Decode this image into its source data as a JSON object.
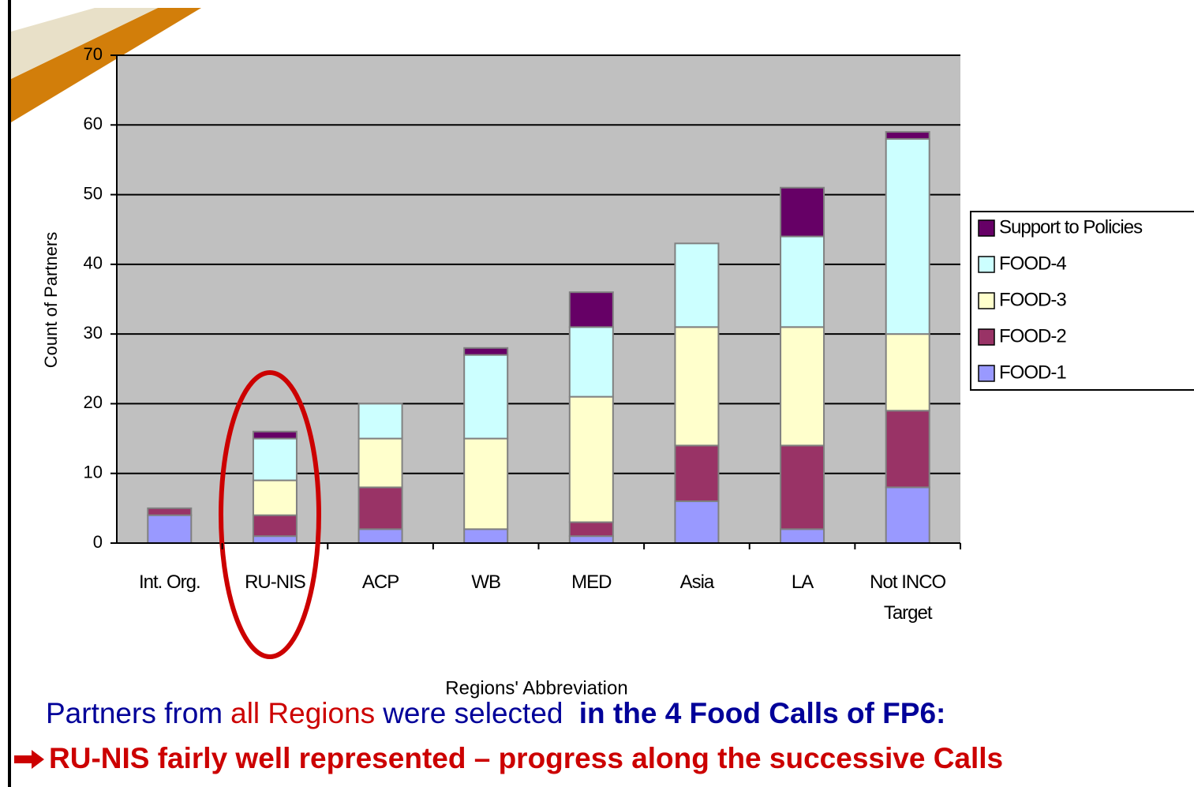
{
  "chart_data": {
    "type": "stacked_bar",
    "ylabel": "Count of Partners",
    "xlabel": "Regions' Abbreviation",
    "categories": [
      "Int. Org.",
      "RU-NIS",
      "ACP",
      "WB",
      "MED",
      "Asia",
      "LA",
      "Not INCO Target"
    ],
    "series": [
      {
        "name": "FOOD-1",
        "color": "#9999ff",
        "values": [
          4,
          1,
          2,
          2,
          1,
          6,
          2,
          8
        ]
      },
      {
        "name": "FOOD-2",
        "color": "#993366",
        "values": [
          1,
          3,
          6,
          0,
          2,
          8,
          12,
          11
        ]
      },
      {
        "name": "FOOD-3",
        "color": "#ffffcc",
        "values": [
          0,
          5,
          7,
          13,
          18,
          17,
          17,
          11
        ]
      },
      {
        "name": "FOOD-4",
        "color": "#ccffff",
        "values": [
          0,
          6,
          5,
          12,
          10,
          12,
          13,
          28
        ]
      },
      {
        "name": "Support to Policies",
        "color": "#660066",
        "values": [
          0,
          1,
          0,
          1,
          5,
          0,
          7,
          1
        ]
      }
    ],
    "ylim": [
      0,
      70
    ],
    "yticks": [
      0,
      10,
      20,
      30,
      40,
      50,
      60,
      70
    ],
    "grid": true,
    "legend": "right",
    "headline": [
      {
        "text": "Partners from",
        "color": "#000099",
        "bold": false
      },
      {
        "text": "all  Regions",
        "color": "#cc0000",
        "bold": false
      },
      {
        "text": "were selected",
        "color": "#000099",
        "bold": false
      },
      {
        "text": " in the 4 Food Calls of FP6:",
        "color": "#000099",
        "bold": true
      }
    ],
    "subheadline": {
      "text": "RU-NIS fairly well represented – progress along the successive Calls",
      "color": "#cc0000"
    }
  }
}
